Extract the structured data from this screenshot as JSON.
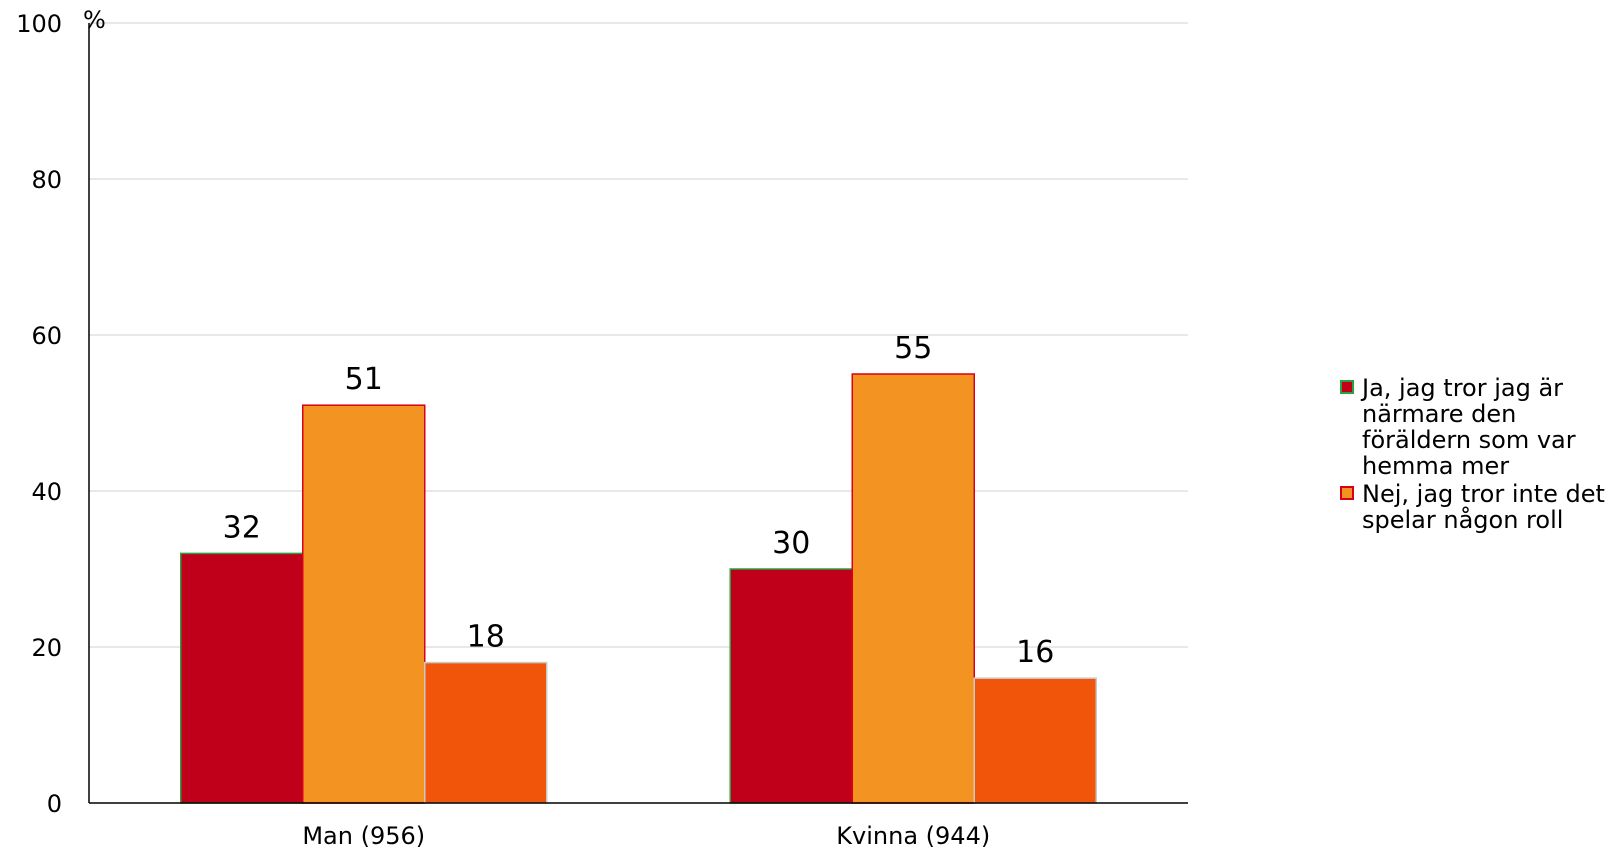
{
  "chart_data": {
    "type": "bar",
    "categories": [
      "Man (956)",
      "Kvinna (944)"
    ],
    "series": [
      {
        "name": "Ja, jag tror jag är närmare den föräldern som var hemma mer",
        "values": [
          32,
          30
        ],
        "color": "#c0001a",
        "stroke": "#2e9e3e"
      },
      {
        "name": "Nej, jag tror inte det spelar någon roll",
        "values": [
          51,
          55
        ],
        "color": "#f39322",
        "stroke": "#d9001b"
      },
      {
        "name": "",
        "values": [
          18,
          16
        ],
        "color": "#f0550a",
        "stroke": "#c8c8c8"
      }
    ],
    "ylim": [
      0,
      100
    ],
    "yticks": [
      0,
      20,
      40,
      60,
      80,
      100
    ],
    "yunit": "%",
    "grid": true,
    "legend_position": "right"
  }
}
